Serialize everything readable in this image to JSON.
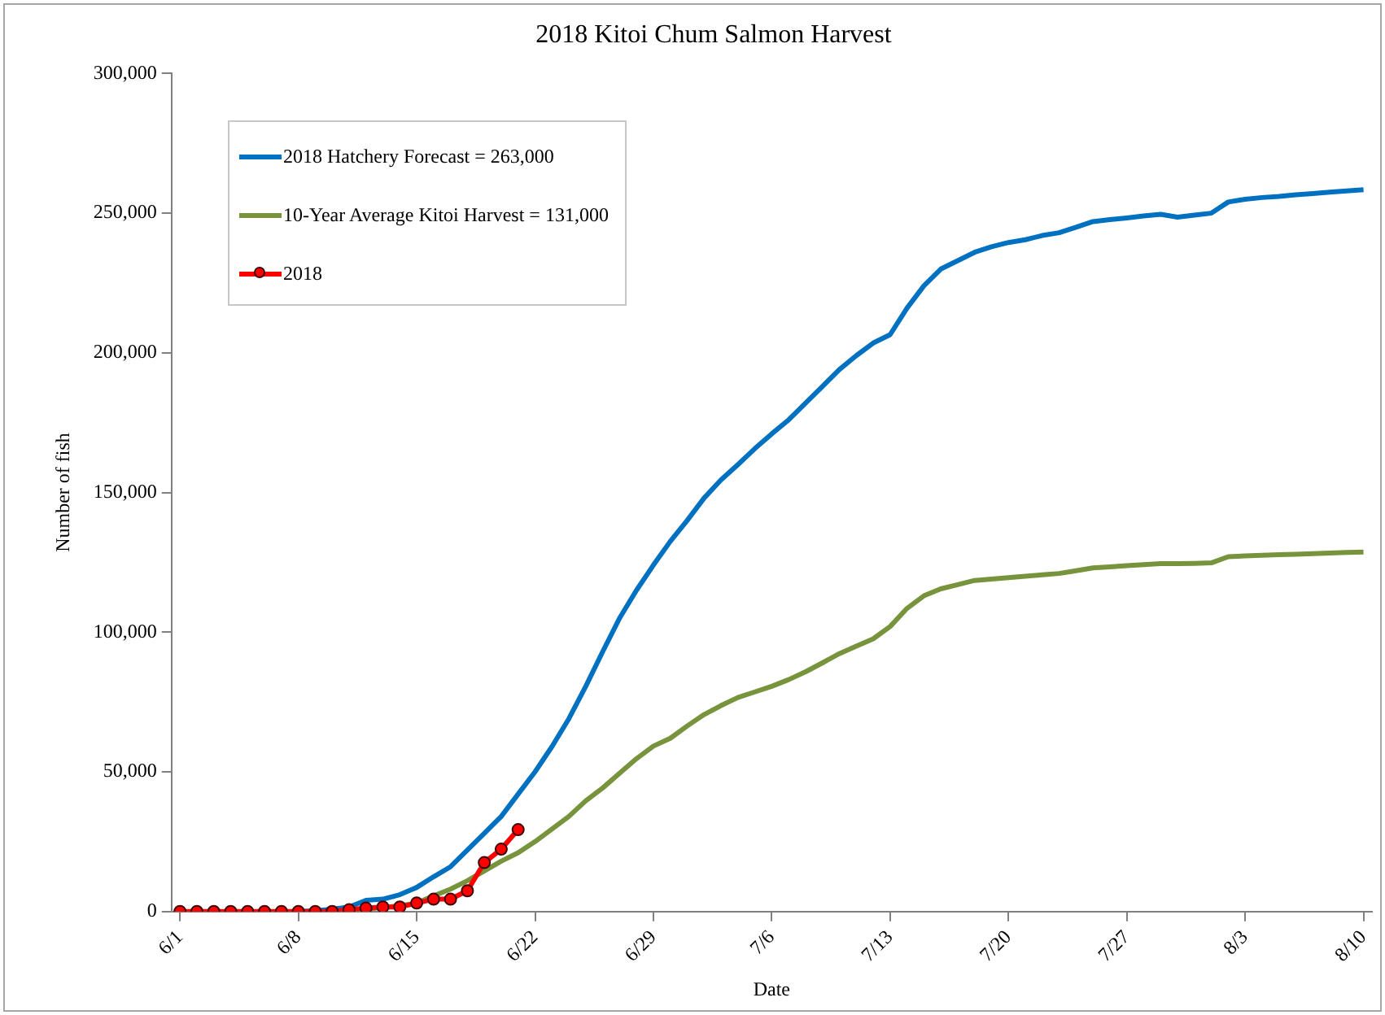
{
  "chart_data": {
    "type": "line",
    "title": "2018 Kitoi Chum Salmon Harvest",
    "xlabel": "Date",
    "ylabel": "Number of fish",
    "categories": [
      "6/1",
      null,
      null,
      null,
      null,
      null,
      null,
      "6/8",
      null,
      null,
      null,
      null,
      null,
      null,
      "6/15",
      null,
      null,
      null,
      null,
      null,
      null,
      "6/22",
      null,
      null,
      null,
      null,
      null,
      null,
      "6/29",
      null,
      null,
      null,
      null,
      null,
      null,
      "7/6",
      null,
      null,
      null,
      null,
      null,
      null,
      "7/13",
      null,
      null,
      null,
      null,
      null,
      null,
      "7/20",
      null,
      null,
      null,
      null,
      null,
      null,
      "7/27",
      null,
      null,
      null,
      null,
      null,
      null,
      "8/3",
      null,
      null,
      null,
      null,
      null,
      null,
      "8/10"
    ],
    "series": [
      {
        "name": "2018 Hatchery Forecast = 263,000",
        "color": "#0070c0",
        "marker": "none",
        "values": [
          null,
          null,
          null,
          null,
          null,
          null,
          null,
          0,
          300,
          800,
          1600,
          4000,
          4400,
          6000,
          8600,
          12400,
          16000,
          22000,
          28000,
          34000,
          42000,
          50000,
          59000,
          69000,
          80600,
          93000,
          105000,
          115000,
          124000,
          132500,
          140000,
          148000,
          154500,
          160000,
          165700,
          171000,
          176000,
          182000,
          188000,
          194000,
          199000,
          203500,
          206500,
          216000,
          224000,
          230000,
          233000,
          236000,
          238000,
          239500,
          240500,
          242000,
          243000,
          245000,
          247000,
          247700,
          248300,
          249000,
          249600,
          248600,
          249300,
          250000,
          254000,
          255000,
          255600,
          256000,
          256600,
          257000,
          257500,
          258000,
          258400
        ]
      },
      {
        "name": "10-Year Average Kitoi Harvest = 131,000",
        "color": "#77933c",
        "marker": "none",
        "values": [
          null,
          null,
          null,
          null,
          null,
          null,
          null,
          null,
          null,
          null,
          300,
          800,
          1400,
          2000,
          3000,
          5600,
          8000,
          11000,
          14500,
          18000,
          21000,
          25000,
          29500,
          34000,
          39600,
          44200,
          49500,
          54700,
          59200,
          62000,
          66400,
          70500,
          73700,
          76600,
          78600,
          80600,
          83000,
          85800,
          89000,
          92300,
          95000,
          97600,
          102000,
          108500,
          113000,
          115500,
          117000,
          118500,
          119000,
          119500,
          120000,
          120500,
          121000,
          122000,
          123000,
          123400,
          123800,
          124200,
          124500,
          124500,
          124600,
          124800,
          127000,
          127300,
          127500,
          127700,
          127900,
          128100,
          128300,
          128500,
          128700
        ]
      },
      {
        "name": "2018",
        "color": "#ff0000",
        "marker": "circle",
        "values": [
          0,
          0,
          0,
          0,
          0,
          0,
          0,
          0,
          0,
          0,
          600,
          1200,
          1600,
          1600,
          3000,
          4400,
          4400,
          7400,
          17500,
          22300,
          29300,
          null,
          null,
          null,
          null,
          null,
          null,
          null,
          null,
          null,
          null,
          null,
          null,
          null,
          null,
          null,
          null,
          null,
          null,
          null,
          null,
          null,
          null,
          null,
          null,
          null,
          null,
          null,
          null,
          null,
          null,
          null,
          null,
          null,
          null,
          null,
          null,
          null,
          null,
          null,
          null,
          null,
          null,
          null,
          null,
          null,
          null,
          null,
          null,
          null,
          null
        ]
      }
    ],
    "ylim": [
      0,
      300000
    ],
    "yticks": [
      {
        "value": 0,
        "label": "0"
      },
      {
        "value": 50000,
        "label": "50,000"
      },
      {
        "value": 100000,
        "label": "100,000"
      },
      {
        "value": 150000,
        "label": "150,000"
      },
      {
        "value": 200000,
        "label": "200,000"
      },
      {
        "value": 250000,
        "label": "250,000"
      },
      {
        "value": 300000,
        "label": "300,000"
      }
    ],
    "grid": false,
    "legend": "top left"
  }
}
